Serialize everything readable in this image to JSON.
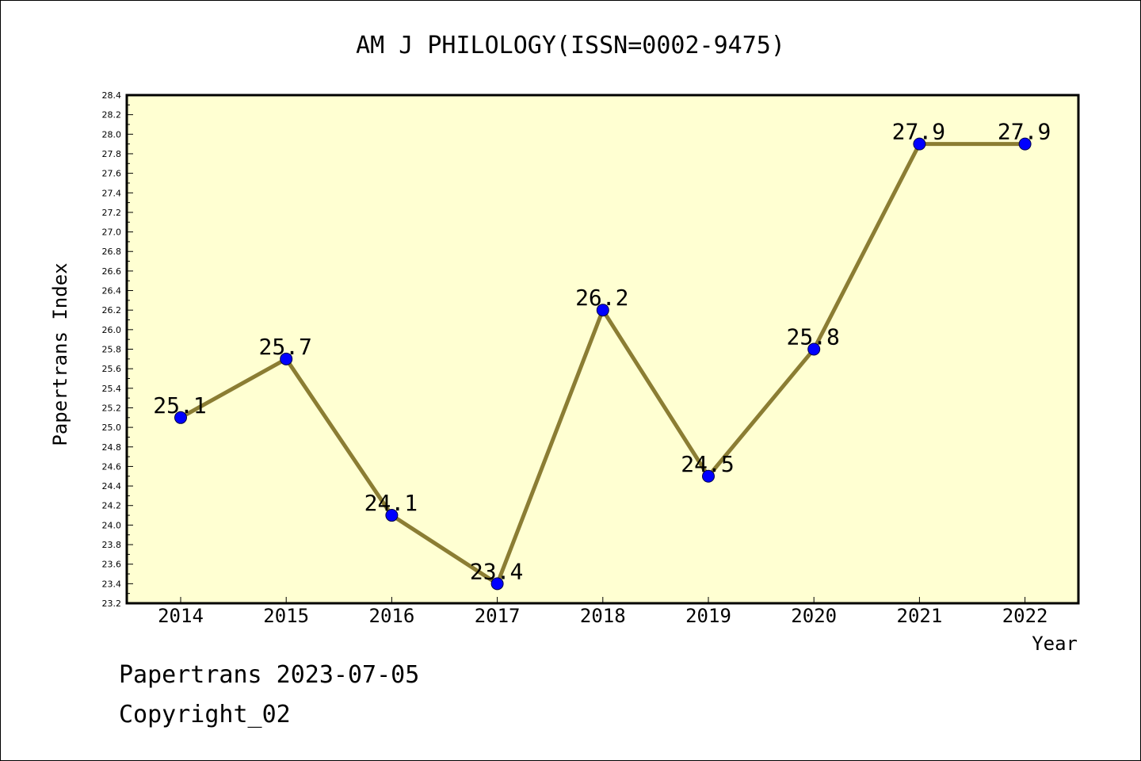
{
  "chart_data": {
    "type": "line",
    "title": "AM J PHILOLOGY(ISSN=0002-9475)",
    "xlabel": "Year",
    "ylabel": "Papertrans Index",
    "categories": [
      "2014",
      "2015",
      "2016",
      "2017",
      "2018",
      "2019",
      "2020",
      "2021",
      "2022"
    ],
    "series": [
      {
        "values": [
          25.1,
          25.7,
          24.1,
          23.4,
          26.2,
          24.5,
          25.8,
          27.9,
          27.9
        ],
        "labels": [
          "25.1",
          "25.7",
          "24.1",
          "23.4",
          "26.2",
          "24.5",
          "25.8",
          "27.9",
          "27.9"
        ]
      }
    ],
    "ylim": [
      23.2,
      28.4
    ],
    "yticks": [
      "23.2",
      "23.4",
      "23.6",
      "23.8",
      "24.0",
      "24.2",
      "24.4",
      "24.6",
      "24.8",
      "25.0",
      "25.2",
      "25.4",
      "25.6",
      "25.8",
      "26.0",
      "26.2",
      "26.4",
      "26.6",
      "26.8",
      "27.0",
      "27.2",
      "27.4",
      "27.6",
      "27.8",
      "28.0",
      "28.2",
      "28.4"
    ],
    "grid": false,
    "colors": {
      "plot_background": "#ffffd2",
      "line": "#8b7d33",
      "marker": "#0000ff",
      "axis": "#000000"
    }
  },
  "footer": {
    "line1": "Papertrans 2023-07-05",
    "line2": "Copyright_02"
  }
}
